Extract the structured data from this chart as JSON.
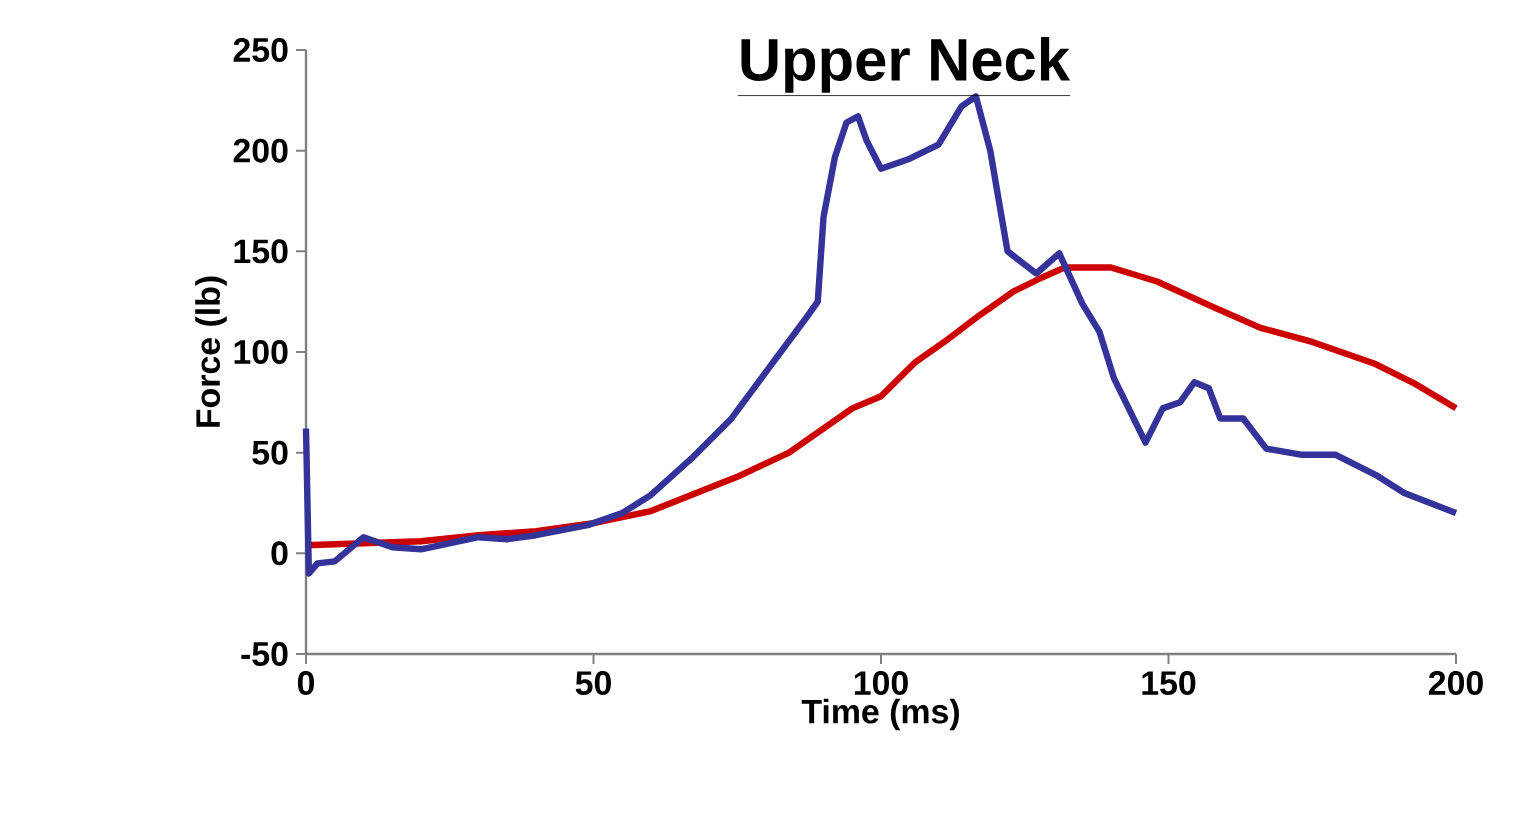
{
  "chart_data": {
    "type": "line",
    "title": "Upper Neck",
    "xlabel": "Time (ms)",
    "ylabel": "Force (lb)",
    "xlim": [
      0,
      200
    ],
    "xticks": [
      0,
      50,
      100,
      150,
      200
    ],
    "ylim": [
      -50,
      250
    ],
    "yticks": [
      -50,
      0,
      50,
      100,
      150,
      200,
      250
    ],
    "grid": false,
    "marker": "none",
    "line_style": "solid",
    "series": [
      {
        "color": "#cc0000",
        "x": [
          0,
          10,
          20,
          30,
          40,
          50,
          60,
          67,
          75,
          84,
          95,
          100,
          106,
          111,
          117,
          123,
          128,
          132,
          140,
          148,
          158,
          166,
          175,
          186,
          193,
          200
        ],
        "values": [
          4,
          5,
          6,
          9,
          11,
          15,
          21,
          29,
          38,
          50,
          72,
          78,
          95,
          105,
          118,
          130,
          137,
          142,
          142,
          135,
          122,
          112,
          105,
          94,
          84,
          72
        ]
      },
      {
        "color": "#333399",
        "x": [
          0,
          0.5,
          2,
          5,
          10,
          15,
          20,
          25,
          30,
          35,
          40,
          49,
          55,
          60,
          67,
          74,
          81,
          87,
          89,
          90,
          92,
          94,
          96,
          97.5,
          100,
          105,
          110,
          114,
          116.5,
          119,
          122,
          127,
          131,
          135,
          138,
          140.5,
          146,
          149,
          152,
          154.5,
          157,
          159,
          163,
          167,
          173,
          179,
          186,
          191,
          200
        ],
        "values": [
          62,
          -10,
          -5,
          -4,
          8,
          3,
          2,
          5,
          8,
          7,
          9,
          14,
          20,
          29,
          47,
          67,
          94,
          117,
          125,
          167,
          197,
          214,
          217,
          205,
          191,
          196,
          203,
          222,
          227,
          200,
          150,
          139,
          149,
          124,
          110,
          87,
          55,
          72,
          75,
          85,
          82,
          67,
          67,
          52,
          49,
          49,
          39,
          30,
          20
        ]
      }
    ]
  }
}
